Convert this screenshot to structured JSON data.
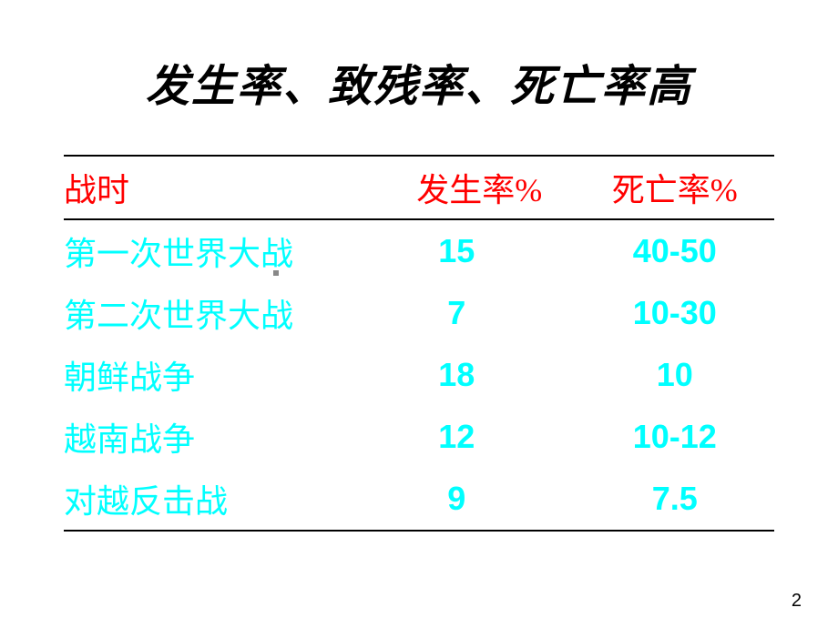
{
  "title": "发生率、致残率、死亡率高",
  "table": {
    "headers": {
      "col_war": "战时",
      "col_rate1": "发生率%",
      "col_rate2": "死亡率%"
    },
    "rows": [
      {
        "war": "第一次世界大战",
        "rate1": "15",
        "rate2": "40-50"
      },
      {
        "war": "第二次世界大战",
        "rate1": "7",
        "rate2": "10-30"
      },
      {
        "war": "朝鲜战争",
        "rate1": "18",
        "rate2": "10"
      },
      {
        "war": "越南战争",
        "rate1": "12",
        "rate2": "10-12"
      },
      {
        "war": "对越反击战",
        "rate1": "9",
        "rate2": "7.5"
      }
    ],
    "styling": {
      "header_color": "#ff0000",
      "data_color": "#00ffff",
      "border_color": "#000000",
      "header_fontsize": 36,
      "data_fontsize": 36,
      "font_family_cn": "SimSun",
      "font_family_num": "sans-serif",
      "col_widths_pct": [
        45,
        27,
        28
      ]
    }
  },
  "page_number": "2",
  "background_color": "#ffffff",
  "title_style": {
    "color": "#000000",
    "fontsize": 48,
    "font_weight": "bold",
    "font_style": "italic",
    "font_family": "SimHei"
  }
}
